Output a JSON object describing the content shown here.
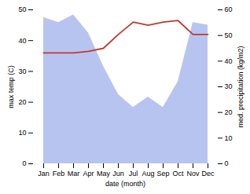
{
  "chart_data": {
    "type": "line",
    "categories": [
      "Jan",
      "Feb",
      "Mar",
      "Apr",
      "May",
      "Jun",
      "Jul",
      "Aug",
      "Sep",
      "Oct",
      "Nov",
      "Dec"
    ],
    "xlabel": "date (month)",
    "ylabel": "max temp (C)",
    "y2label": "med. precipitation (kg/m2)",
    "ylim": [
      0,
      50
    ],
    "yticks": [
      0,
      10,
      20,
      30,
      40,
      50
    ],
    "y2lim": [
      0,
      60
    ],
    "y2ticks": [
      0,
      10,
      20,
      30,
      40,
      50,
      60
    ],
    "series": [
      {
        "type": "area",
        "axis": "y2",
        "color": "#b8c4f0",
        "values": [
          57,
          55,
          58,
          51,
          38,
          27,
          22,
          26,
          22,
          32,
          55,
          54
        ]
      },
      {
        "type": "line",
        "color": "#c0392b",
        "values": [
          36,
          36,
          36,
          36.5,
          37.5,
          42,
          46,
          45,
          46,
          46.5,
          42,
          42
        ]
      }
    ]
  }
}
